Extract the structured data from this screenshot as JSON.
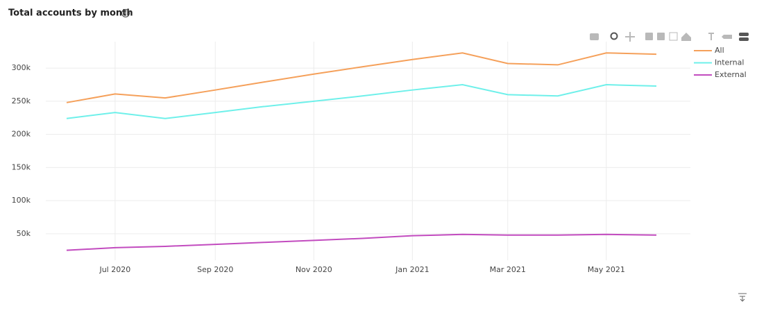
{
  "chart_data": {
    "type": "line",
    "title": "Total accounts by month",
    "x": [
      "2020-06",
      "2020-07",
      "2020-08",
      "2020-09",
      "2020-10",
      "2020-11",
      "2020-12",
      "2021-01",
      "2021-02",
      "2021-03",
      "2021-04",
      "2021-05",
      "2021-06"
    ],
    "xticks": [
      {
        "value": "2020-07",
        "label": "Jul 2020"
      },
      {
        "value": "2020-09",
        "label": "Sep 2020"
      },
      {
        "value": "2020-11",
        "label": "Nov 2020"
      },
      {
        "value": "2021-01",
        "label": "Jan 2021"
      },
      {
        "value": "2021-03",
        "label": "Mar 2021"
      },
      {
        "value": "2021-05",
        "label": "May 2021"
      }
    ],
    "ylim": [
      10000,
      340000
    ],
    "yticks": [
      {
        "value": 50000,
        "label": "50k"
      },
      {
        "value": 100000,
        "label": "100k"
      },
      {
        "value": 150000,
        "label": "150k"
      },
      {
        "value": 200000,
        "label": "200k"
      },
      {
        "value": 250000,
        "label": "250k"
      },
      {
        "value": 300000,
        "label": "300k"
      }
    ],
    "grid": true,
    "series": [
      {
        "name": "All",
        "color": "#f5a05a",
        "values": [
          248000,
          261000,
          255000,
          267000,
          279000,
          291000,
          302000,
          313000,
          323000,
          307000,
          305000,
          323000,
          321000
        ]
      },
      {
        "name": "Internal",
        "color": "#6ef0ea",
        "values": [
          224000,
          233000,
          224000,
          233000,
          242000,
          250000,
          258000,
          267000,
          275000,
          260000,
          258000,
          275000,
          273000
        ]
      },
      {
        "name": "External",
        "color": "#c24bbf",
        "values": [
          25000,
          29000,
          31000,
          34000,
          37000,
          40000,
          43000,
          47000,
          49000,
          48000,
          48000,
          49000,
          48000
        ]
      }
    ]
  }
}
